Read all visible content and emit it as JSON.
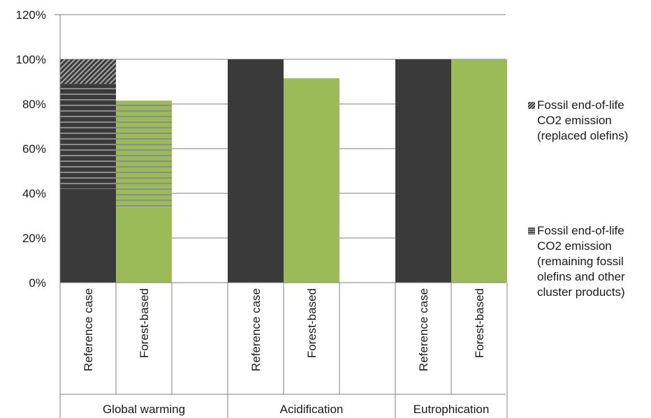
{
  "chart_data": {
    "type": "bar",
    "stacked": true,
    "title": "",
    "ylabel": "",
    "ylim": [
      0,
      120
    ],
    "yticks": [
      "0%",
      "20%",
      "40%",
      "60%",
      "80%",
      "100%",
      "120%"
    ],
    "ytick_values": [
      0,
      20,
      40,
      60,
      80,
      100,
      120
    ],
    "grid": true,
    "legend_position": "right",
    "groups": [
      {
        "name": "Global warming",
        "bars": [
          {
            "label": "Reference case",
            "color": "#3a3a3a",
            "segments": [
              {
                "series": "base",
                "from": 0,
                "to": 42
              },
              {
                "series": "remaining",
                "from": 42,
                "to": 89
              },
              {
                "series": "replaced",
                "from": 89,
                "to": 100
              }
            ]
          },
          {
            "label": "Forest-based",
            "color": "#9bbb59",
            "segments": [
              {
                "series": "base",
                "from": 0,
                "to": 34
              },
              {
                "series": "remaining",
                "from": 34,
                "to": 81.5
              }
            ]
          },
          {
            "label": "",
            "color": "",
            "segments": []
          }
        ]
      },
      {
        "name": "Acidification",
        "bars": [
          {
            "label": "Reference case",
            "color": "#3a3a3a",
            "segments": [
              {
                "series": "base",
                "from": 0,
                "to": 100
              }
            ]
          },
          {
            "label": "Forest-based",
            "color": "#9bbb59",
            "segments": [
              {
                "series": "base",
                "from": 0,
                "to": 91.5
              }
            ]
          },
          {
            "label": "",
            "color": "",
            "segments": []
          }
        ]
      },
      {
        "name": "Eutrophication",
        "bars": [
          {
            "label": "Reference case",
            "color": "#3a3a3a",
            "segments": [
              {
                "series": "base",
                "from": 0,
                "to": 100
              }
            ]
          },
          {
            "label": "Forest-based",
            "color": "#9bbb59",
            "segments": [
              {
                "series": "base",
                "from": 0,
                "to": 100
              }
            ]
          }
        ]
      }
    ],
    "legend": [
      {
        "key": "replaced",
        "label": "Fossil end-of-life CO2 emission (replaced olefins)",
        "pattern": "diagonal-hatch"
      },
      {
        "key": "remaining",
        "label": "Fossil end-of-life CO2 emission (remaining fossil olefins and other cluster products)",
        "pattern": "horizontal-stripes"
      }
    ],
    "colors": {
      "reference": "#3a3a3a",
      "forest": "#9bbb59",
      "axis": "#7f7f7f",
      "grid": "#7f7f7f"
    }
  }
}
